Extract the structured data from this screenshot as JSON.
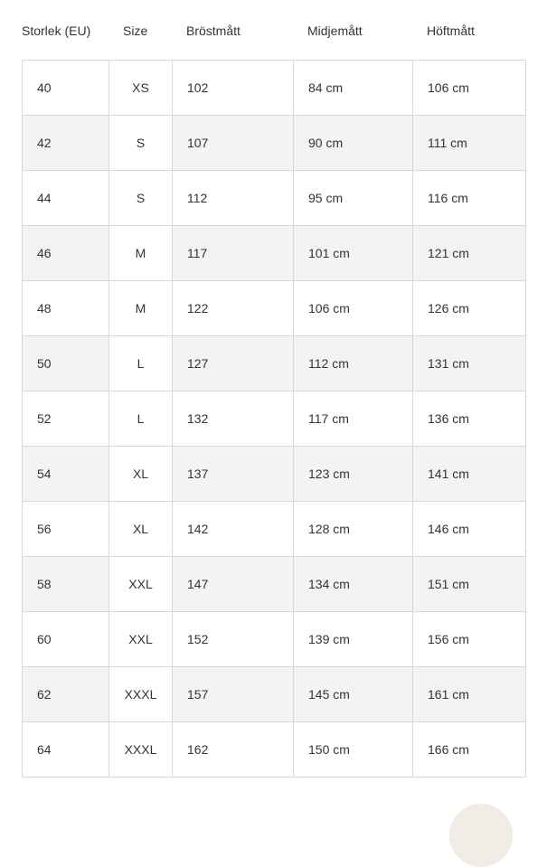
{
  "headers": [
    "Storlek (EU)",
    "Size",
    "Bröstmått",
    "Midjemått",
    "Höftmått"
  ],
  "rows": [
    [
      "40",
      "XS",
      "102",
      "84 cm",
      "106 cm"
    ],
    [
      "42",
      "S",
      "107",
      "90 cm",
      "111 cm"
    ],
    [
      "44",
      "S",
      "112",
      "95 cm",
      "116 cm"
    ],
    [
      "46",
      "M",
      "117",
      "101 cm",
      "121 cm"
    ],
    [
      "48",
      "M",
      "122",
      "106 cm",
      "126 cm"
    ],
    [
      "50",
      "L",
      "127",
      "112 cm",
      "131 cm"
    ],
    [
      "52",
      "L",
      "132",
      "117 cm",
      "136 cm"
    ],
    [
      "54",
      "XL",
      "137",
      "123 cm",
      "141 cm"
    ],
    [
      "56",
      "XL",
      "142",
      "128 cm",
      "146 cm"
    ],
    [
      "58",
      "XXL",
      "147",
      "134 cm",
      "151 cm"
    ],
    [
      "60",
      "XXL",
      "152",
      "139 cm",
      "156 cm"
    ],
    [
      "62",
      "XXXL",
      "157",
      "145 cm",
      "161 cm"
    ],
    [
      "64",
      "XXXL",
      "162",
      "150 cm",
      "166 cm"
    ]
  ],
  "colors": {
    "alt_row": "#f3f3f3",
    "border": "#d8d8d8"
  }
}
